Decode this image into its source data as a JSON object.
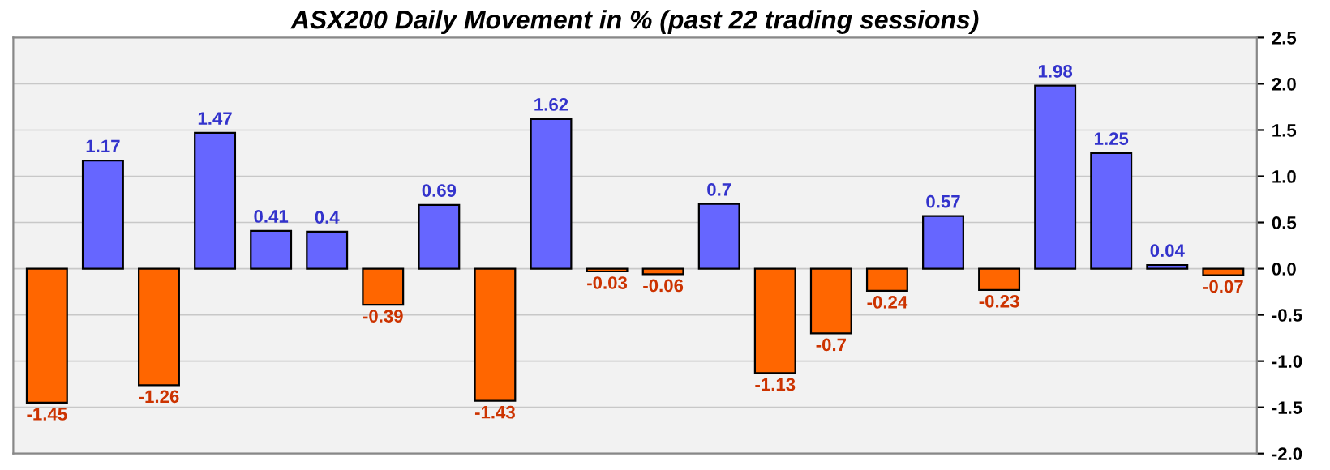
{
  "chart_data": {
    "type": "bar",
    "title": "ASX200 Daily Movement in % (past 22 trading sessions)",
    "categories": [
      null,
      null,
      null,
      null,
      null,
      null,
      null,
      null,
      null,
      null,
      null,
      null,
      null,
      null,
      null,
      null,
      null,
      null,
      null,
      null,
      null,
      null
    ],
    "values": [
      -1.45,
      1.17,
      -1.26,
      1.47,
      0.41,
      0.4,
      -0.39,
      0.69,
      -1.43,
      1.62,
      -0.03,
      -0.06,
      0.7,
      -1.13,
      -0.7,
      -0.24,
      0.57,
      -0.23,
      1.98,
      1.25,
      0.04,
      -0.07
    ],
    "colors": [
      "#ff6600",
      "#6666ff",
      "#ff6600",
      "#6666ff",
      "#6666ff",
      "#6666ff",
      "#ff6600",
      "#6666ff",
      "#ff6600",
      "#6666ff",
      "#ff6600",
      "#ff6600",
      "#6666ff",
      "#ff6600",
      "#ff6600",
      "#ff6600",
      "#6666ff",
      "#ff6600",
      "#6666ff",
      "#6666ff",
      "#6666ff",
      "#ff6600"
    ],
    "ylim": [
      -2.0,
      2.5
    ],
    "yticks": [
      {
        "value": -2.0,
        "label": "-2.0"
      },
      {
        "value": -1.5,
        "label": "-1.5"
      },
      {
        "value": -1.0,
        "label": "-1.0"
      },
      {
        "value": -0.5,
        "label": "-0.5"
      },
      {
        "value": 0.0,
        "label": "0.0"
      },
      {
        "value": 0.5,
        "label": "0.5"
      },
      {
        "value": 1.0,
        "label": "1.0"
      },
      {
        "value": 1.5,
        "label": "1.5"
      },
      {
        "value": 2.0,
        "label": "2.0"
      },
      {
        "value": 2.5,
        "label": "2.5"
      }
    ],
    "grid": "y",
    "data_labels": true
  }
}
